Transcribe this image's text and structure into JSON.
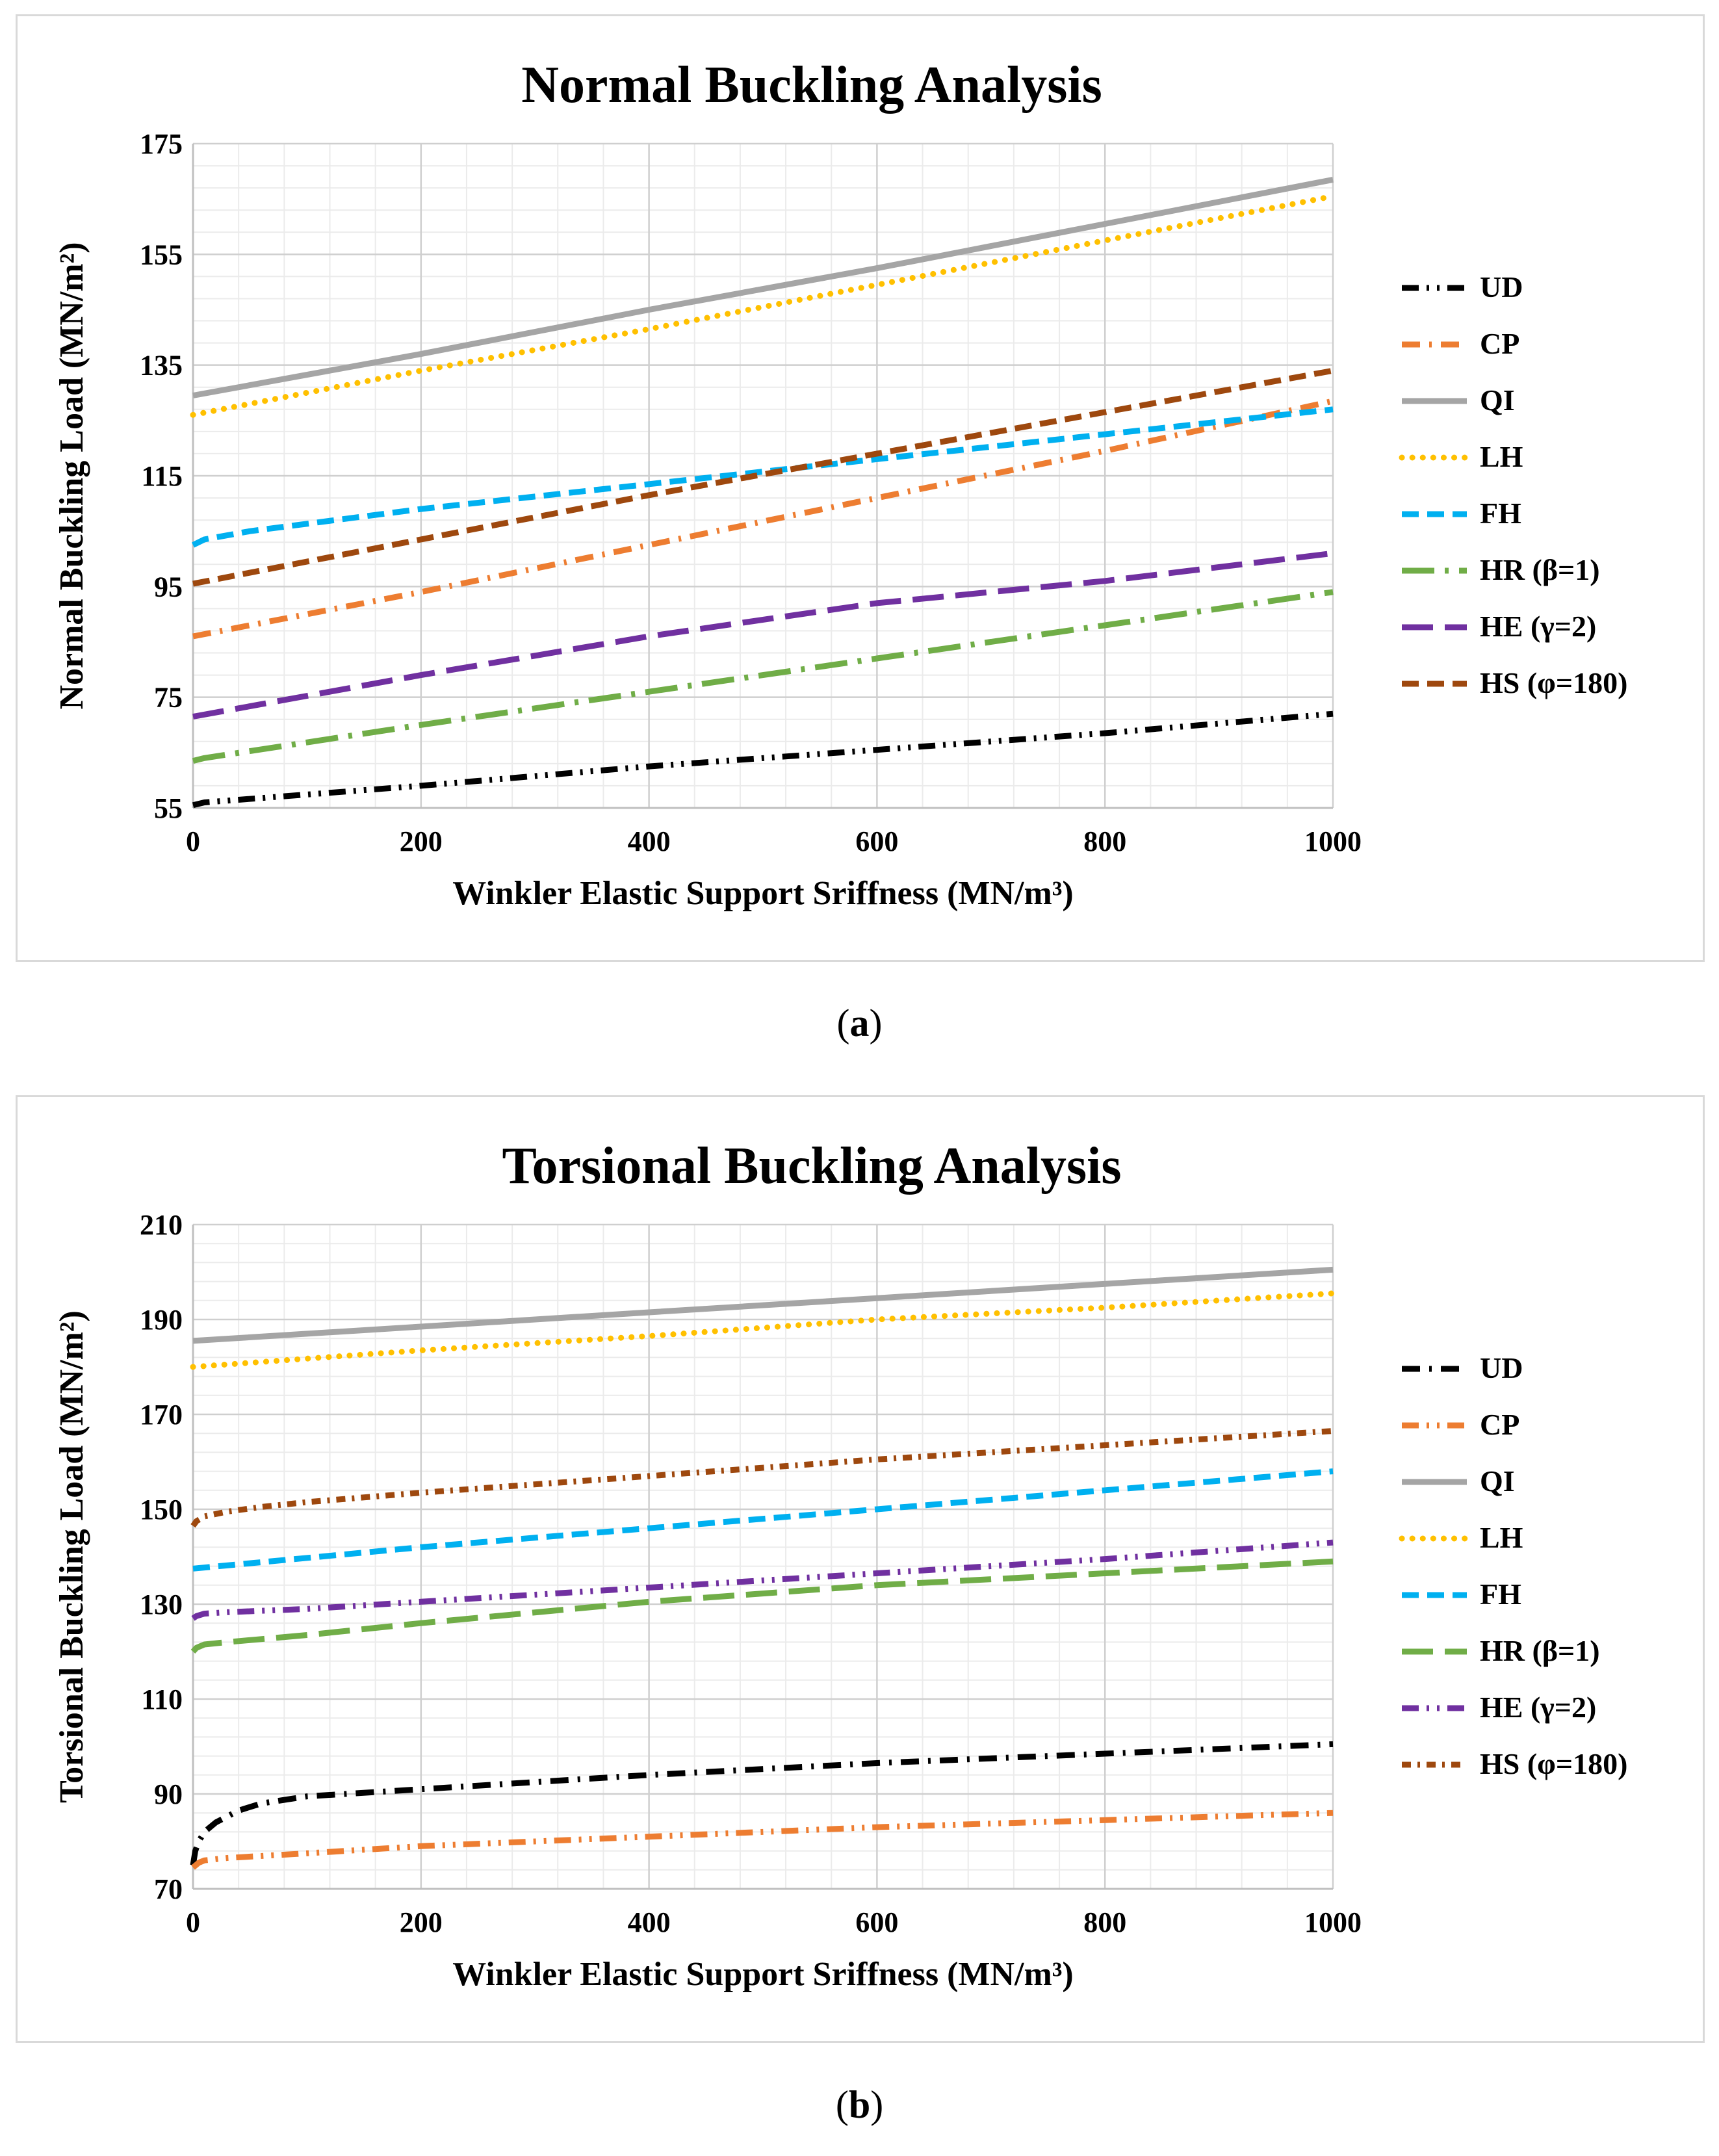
{
  "captions": [
    "(a)",
    "(b)"
  ],
  "caption_letters": [
    "a",
    "b"
  ],
  "colors": {
    "UD": "#000000",
    "CP": "#ed7d31",
    "QI": "#a5a5a5",
    "LH": "#ffc000",
    "FH": "#00b0f0",
    "HR": "#70ad47",
    "HE": "#7030a0",
    "HS": "#9e480e"
  },
  "chart_data": [
    {
      "type": "line",
      "title": "Normal Buckling Analysis",
      "xlabel": "Winkler Elastic Support Sriffness (MN/m³)",
      "ylabel": "Normal Buckling Load (MN/m²)",
      "xlim": [
        0,
        1000
      ],
      "ylim": [
        55,
        175
      ],
      "xticks": [
        0,
        200,
        400,
        600,
        800,
        1000
      ],
      "yticks": [
        55,
        75,
        95,
        115,
        135,
        155,
        175
      ],
      "grid": true,
      "legend_position": "right",
      "series": [
        {
          "name": "UD",
          "color": "#000000",
          "dash": "dashdotdot",
          "x": [
            0,
            10,
            200,
            400,
            600,
            800,
            1000
          ],
          "y": [
            55.5,
            56,
            59,
            62.5,
            65.5,
            68.5,
            72
          ]
        },
        {
          "name": "CP",
          "color": "#ed7d31",
          "dash": "dashdot",
          "x": [
            0,
            200,
            400,
            600,
            800,
            1000
          ],
          "y": [
            86,
            94,
            102.5,
            111,
            119.5,
            128.5
          ]
        },
        {
          "name": "QI",
          "color": "#a5a5a5",
          "dash": "solid",
          "x": [
            0,
            200,
            400,
            600,
            800,
            1000
          ],
          "y": [
            129.5,
            137,
            145,
            152.5,
            160.5,
            168.5
          ]
        },
        {
          "name": "LH",
          "color": "#ffc000",
          "dash": "dot",
          "x": [
            0,
            200,
            400,
            600,
            800,
            1000
          ],
          "y": [
            126,
            134,
            141.5,
            149.5,
            157.5,
            165.5
          ]
        },
        {
          "name": "FH",
          "color": "#00b0f0",
          "dash": "dash",
          "x": [
            0,
            10,
            50,
            200,
            400,
            600,
            800,
            1000
          ],
          "y": [
            102.5,
            103.5,
            105,
            109,
            113.5,
            118,
            122.5,
            127
          ]
        },
        {
          "name": "HR (β=1)",
          "color": "#70ad47",
          "dash": "longdashdot",
          "x": [
            0,
            10,
            200,
            400,
            600,
            800,
            1000
          ],
          "y": [
            63.5,
            64,
            70,
            76,
            82,
            88,
            94
          ]
        },
        {
          "name": "HE (γ=2)",
          "color": "#7030a0",
          "dash": "longdash",
          "x": [
            0,
            200,
            400,
            600,
            800,
            1000
          ],
          "y": [
            71.5,
            79,
            86,
            92,
            96,
            101
          ]
        },
        {
          "name": "HS (φ=180)",
          "color": "#9e480e",
          "dash": "dash",
          "x": [
            0,
            200,
            400,
            600,
            800,
            1000
          ],
          "y": [
            95.5,
            103.5,
            111.5,
            119,
            126.5,
            134
          ]
        }
      ]
    },
    {
      "type": "line",
      "title": "Torsional Buckling Analysis",
      "xlabel": "Winkler Elastic Support Sriffness (MN/m³)",
      "ylabel": "Torsional Buckling Load (MN/m²)",
      "xlim": [
        0,
        1000
      ],
      "ylim": [
        70,
        210
      ],
      "xticks": [
        0,
        200,
        400,
        600,
        800,
        1000
      ],
      "yticks": [
        70,
        90,
        110,
        130,
        150,
        170,
        190,
        210
      ],
      "grid": true,
      "legend_position": "right",
      "series": [
        {
          "name": "UD",
          "color": "#000000",
          "dash": "dashdot",
          "x": [
            0,
            2,
            5,
            10,
            20,
            40,
            60,
            100,
            200,
            400,
            600,
            800,
            1000
          ],
          "y": [
            75,
            78,
            80,
            82,
            84,
            86.5,
            88,
            89.5,
            91,
            94,
            96.5,
            98.5,
            100.5
          ]
        },
        {
          "name": "CP",
          "color": "#ed7d31",
          "dash": "dashdotdot",
          "x": [
            0,
            5,
            10,
            30,
            100,
            200,
            400,
            600,
            800,
            1000
          ],
          "y": [
            74.5,
            75.5,
            76,
            76.5,
            77.5,
            79,
            81,
            83,
            84.5,
            86
          ]
        },
        {
          "name": "QI",
          "color": "#a5a5a5",
          "dash": "solid",
          "x": [
            0,
            200,
            400,
            600,
            800,
            1000
          ],
          "y": [
            185.5,
            188.5,
            191.5,
            194.5,
            197.5,
            200.5
          ]
        },
        {
          "name": "LH",
          "color": "#ffc000",
          "dash": "dot",
          "x": [
            0,
            200,
            400,
            600,
            800,
            1000
          ],
          "y": [
            180,
            183.5,
            186.5,
            190,
            192.5,
            195.5
          ]
        },
        {
          "name": "FH",
          "color": "#00b0f0",
          "dash": "dash",
          "x": [
            0,
            200,
            400,
            600,
            800,
            1000
          ],
          "y": [
            137.5,
            142,
            146,
            150,
            154,
            158
          ]
        },
        {
          "name": "HR (β=1)",
          "color": "#70ad47",
          "dash": "longdash",
          "x": [
            0,
            3,
            10,
            30,
            100,
            200,
            400,
            600,
            800,
            1000
          ],
          "y": [
            120,
            120.8,
            121.5,
            122,
            123.5,
            126,
            130.5,
            134,
            136.5,
            139
          ]
        },
        {
          "name": "HE (γ=2)",
          "color": "#7030a0",
          "dash": "dashdotdot",
          "x": [
            0,
            3,
            10,
            30,
            100,
            200,
            400,
            600,
            800,
            1000
          ],
          "y": [
            127,
            127.5,
            128,
            128.3,
            129,
            130.5,
            133.5,
            136.5,
            139.5,
            143
          ]
        },
        {
          "name": "HS (φ=180)",
          "color": "#9e480e",
          "dash": "dotdash",
          "x": [
            0,
            3,
            10,
            30,
            60,
            100,
            200,
            400,
            600,
            800,
            1000
          ],
          "y": [
            146.5,
            147.5,
            148.5,
            149.5,
            150.5,
            151.5,
            153.5,
            157,
            160.5,
            163.5,
            166.5
          ]
        }
      ]
    }
  ]
}
